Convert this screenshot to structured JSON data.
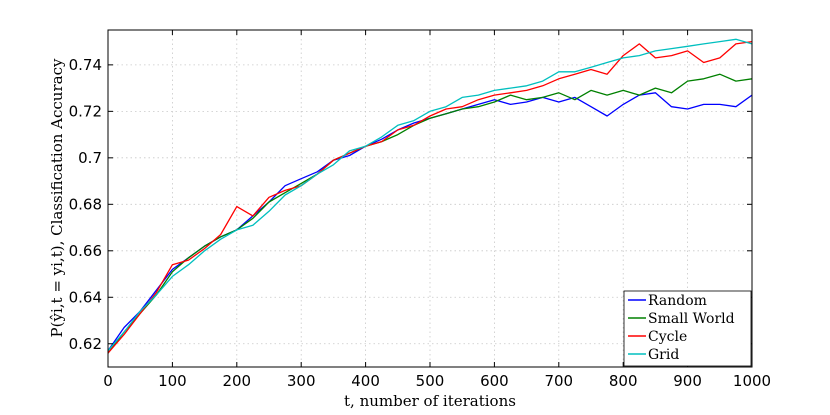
{
  "chart_data": {
    "type": "line",
    "title": "",
    "xlabel": "t, number of iterations",
    "ylabel": "P(ŷi,t = yi,t),  Classification Accuracy",
    "xlim": [
      0,
      1000
    ],
    "ylim": [
      0.61,
      0.755
    ],
    "xticks": [
      0,
      100,
      200,
      300,
      400,
      500,
      600,
      700,
      800,
      900,
      1000
    ],
    "xtick_labels": [
      "0",
      "100",
      "200",
      "300",
      "400",
      "500",
      "600",
      "700",
      "800",
      "900",
      "1000"
    ],
    "yticks": [
      0.62,
      0.64,
      0.66,
      0.68,
      0.7,
      0.72,
      0.74
    ],
    "ytick_labels": [
      "0.62",
      "0.64",
      "0.66",
      "0.68",
      "0.7",
      "0.72",
      "0.74"
    ],
    "grid": true,
    "legend_position": "bottom-right",
    "x": [
      0,
      25,
      50,
      75,
      100,
      125,
      150,
      175,
      200,
      225,
      250,
      275,
      300,
      325,
      350,
      375,
      400,
      425,
      450,
      475,
      500,
      525,
      550,
      575,
      600,
      625,
      650,
      675,
      700,
      725,
      750,
      775,
      800,
      825,
      850,
      875,
      900,
      925,
      950,
      975,
      1000
    ],
    "series": [
      {
        "name": "Random",
        "color": "#0000ff",
        "values": [
          0.617,
          0.627,
          0.634,
          0.643,
          0.652,
          0.657,
          0.662,
          0.666,
          0.669,
          0.675,
          0.681,
          0.688,
          0.691,
          0.694,
          0.699,
          0.701,
          0.705,
          0.708,
          0.712,
          0.715,
          0.717,
          0.719,
          0.721,
          0.723,
          0.725,
          0.723,
          0.724,
          0.726,
          0.724,
          0.726,
          0.722,
          0.718,
          0.723,
          0.727,
          0.728,
          0.722,
          0.721,
          0.723,
          0.723,
          0.722,
          0.727
        ]
      },
      {
        "name": "Small World",
        "color": "#008000",
        "values": [
          0.616,
          0.625,
          0.633,
          0.641,
          0.651,
          0.657,
          0.662,
          0.666,
          0.669,
          0.674,
          0.681,
          0.685,
          0.689,
          0.693,
          0.699,
          0.702,
          0.705,
          0.707,
          0.71,
          0.714,
          0.717,
          0.719,
          0.721,
          0.722,
          0.724,
          0.727,
          0.725,
          0.726,
          0.728,
          0.725,
          0.729,
          0.727,
          0.729,
          0.727,
          0.73,
          0.728,
          0.733,
          0.734,
          0.736,
          0.733,
          0.734
        ]
      },
      {
        "name": "Cycle",
        "color": "#ff0000",
        "values": [
          0.616,
          0.624,
          0.633,
          0.642,
          0.654,
          0.656,
          0.661,
          0.667,
          0.679,
          0.675,
          0.683,
          0.686,
          0.688,
          0.693,
          0.699,
          0.702,
          0.705,
          0.707,
          0.712,
          0.714,
          0.718,
          0.721,
          0.722,
          0.725,
          0.727,
          0.728,
          0.729,
          0.731,
          0.734,
          0.736,
          0.738,
          0.736,
          0.744,
          0.749,
          0.743,
          0.744,
          0.746,
          0.741,
          0.743,
          0.749,
          0.75
        ]
      },
      {
        "name": "Grid",
        "color": "#00bfbf",
        "values": [
          0.617,
          0.625,
          0.634,
          0.641,
          0.649,
          0.654,
          0.66,
          0.665,
          0.669,
          0.671,
          0.677,
          0.684,
          0.688,
          0.693,
          0.697,
          0.703,
          0.705,
          0.709,
          0.714,
          0.716,
          0.72,
          0.722,
          0.726,
          0.727,
          0.729,
          0.73,
          0.731,
          0.733,
          0.737,
          0.737,
          0.739,
          0.741,
          0.743,
          0.744,
          0.746,
          0.747,
          0.748,
          0.749,
          0.75,
          0.751,
          0.749
        ]
      }
    ]
  }
}
